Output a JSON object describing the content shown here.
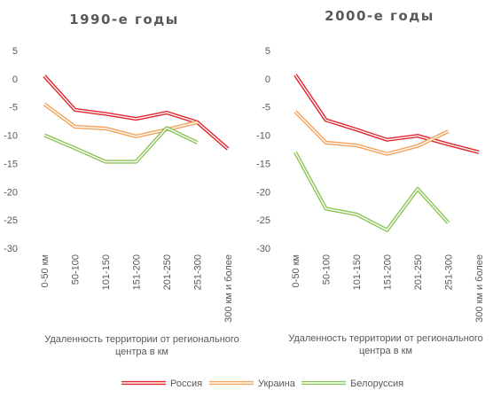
{
  "chart_data": [
    {
      "type": "line",
      "title": "1990-е годы",
      "xlabel": "Удаленность территории от регионального центра в км",
      "xlabel_lines": [
        "Удаленность территории от регионального",
        "центра в км"
      ],
      "ylabel": "",
      "ylim": [
        -30,
        5
      ],
      "yticks": [
        5,
        0,
        -5,
        -10,
        -15,
        -20,
        -25,
        -30
      ],
      "categories": [
        "0-50 км",
        "50-100",
        "101-150",
        "151-200",
        "201-250",
        "251-300",
        "300 км и более"
      ],
      "grid": false,
      "legend": "bottom",
      "series": [
        {
          "name": "Россия",
          "color": "#e0262e",
          "values": [
            0.5,
            -5.5,
            -6.2,
            -7.1,
            -6.0,
            -7.7,
            -12.4
          ]
        },
        {
          "name": "Украина",
          "color": "#f5a25a",
          "values": [
            -4.5,
            -8.5,
            -8.8,
            -10.2,
            -9.0,
            -7.7,
            null
          ]
        },
        {
          "name": "Белоруссия",
          "color": "#8dc45a",
          "values": [
            -10.0,
            -12.3,
            -14.7,
            -14.7,
            -8.7,
            -11.3,
            null
          ]
        }
      ]
    },
    {
      "type": "line",
      "title": "2000-е годы",
      "xlabel": "Удаленность территории от регионального центра в км",
      "xlabel_lines": [
        "Удаленность территории от регионального",
        "центра в км"
      ],
      "ylabel": "",
      "ylim": [
        -30,
        5
      ],
      "yticks": [
        5,
        0,
        -5,
        -10,
        -15,
        -20,
        -25,
        -30
      ],
      "categories": [
        "0-50 км",
        "50-100",
        "101-150",
        "151-200",
        "201-250",
        "251-300",
        "300 км и более"
      ],
      "grid": false,
      "legend": "bottom",
      "series": [
        {
          "name": "Россия",
          "color": "#e0262e",
          "values": [
            0.7,
            -7.3,
            -9.0,
            -10.8,
            -10.1,
            -11.6,
            -13.0
          ]
        },
        {
          "name": "Украина",
          "color": "#f5a25a",
          "values": [
            -5.8,
            -11.3,
            -11.8,
            -13.3,
            -11.9,
            -9.3,
            null
          ]
        },
        {
          "name": "Белоруссия",
          "color": "#8dc45a",
          "values": [
            -13.0,
            -23.0,
            -24.0,
            -26.8,
            -19.5,
            -25.5,
            null
          ]
        }
      ]
    }
  ],
  "legend": [
    {
      "name": "Россия",
      "color": "#e0262e"
    },
    {
      "name": "Украина",
      "color": "#f5a25a"
    },
    {
      "name": "Белоруссия",
      "color": "#8dc45a"
    }
  ]
}
